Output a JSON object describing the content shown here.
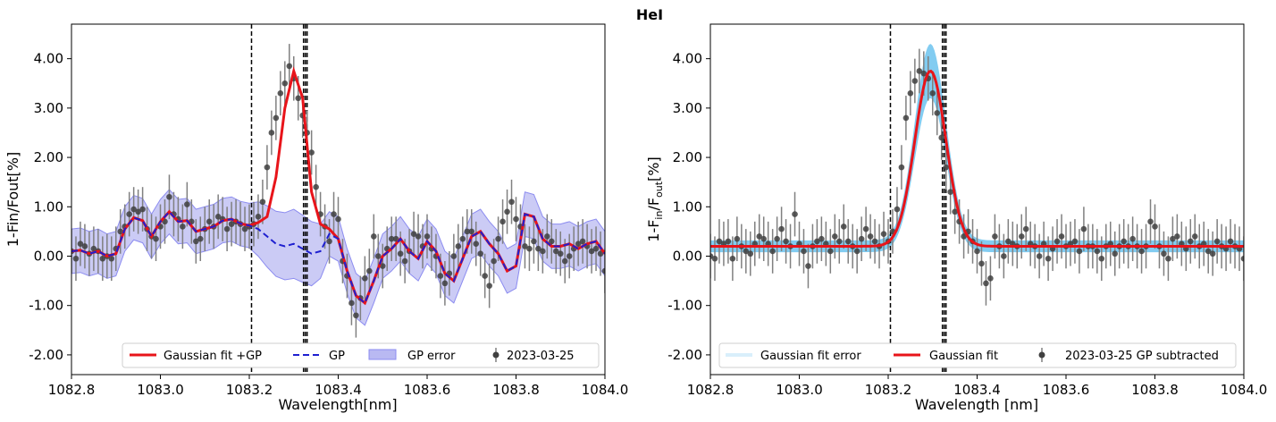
{
  "suptitle": "HeI",
  "colors": {
    "fit": "#e8141a",
    "gp": "#1f20d0",
    "gp_band": "#b9b9f2",
    "gp_band_edge": "#8c8cf0",
    "point": "#404040",
    "errbar": "#808080",
    "right_band": "#74c7ef",
    "right_legend_band": "#d9effb",
    "vline": "#000000"
  },
  "vlines": [
    1083.205,
    1083.322,
    1083.326,
    1083.33
  ],
  "chart_data": [
    {
      "type": "scatter",
      "panel": "left",
      "xlabel": "Wavelength[nm]",
      "ylabel": "1-Fin/Fout[%]",
      "xlim": [
        1082.8,
        1084.0
      ],
      "ylim": [
        -2.4,
        4.7
      ],
      "xticks": [
        1082.8,
        1083.0,
        1083.2,
        1083.4,
        1083.6,
        1083.8,
        1084.0
      ],
      "xtick_labels": [
        "1082.8",
        "1083.0",
        "1083.2",
        "1083.4",
        "1083.6",
        "1083.8",
        "1084.0"
      ],
      "yticks": [
        -2,
        -1,
        0,
        1,
        2,
        3,
        4
      ],
      "ytick_labels": [
        "-2.00",
        "-1.00",
        "0.00",
        "1.00",
        "2.00",
        "3.00",
        "4.00"
      ],
      "legend": {
        "position": "lower-right",
        "entries": [
          "Gaussian fit +GP",
          "GP",
          "GP error",
          "2023-03-25"
        ]
      },
      "series": [
        {
          "name": "2023-03-25",
          "kind": "errorbar",
          "error": 0.45,
          "x": [
            1082.8,
            1082.81,
            1082.82,
            1082.83,
            1082.84,
            1082.85,
            1082.86,
            1082.87,
            1082.88,
            1082.89,
            1082.9,
            1082.91,
            1082.92,
            1082.93,
            1082.94,
            1082.95,
            1082.96,
            1082.97,
            1082.98,
            1082.99,
            1083.0,
            1083.01,
            1083.02,
            1083.03,
            1083.04,
            1083.05,
            1083.06,
            1083.07,
            1083.08,
            1083.09,
            1083.1,
            1083.11,
            1083.12,
            1083.13,
            1083.14,
            1083.15,
            1083.16,
            1083.17,
            1083.18,
            1083.19,
            1083.2,
            1083.21,
            1083.22,
            1083.23,
            1083.24,
            1083.25,
            1083.26,
            1083.27,
            1083.28,
            1083.29,
            1083.3,
            1083.31,
            1083.32,
            1083.33,
            1083.34,
            1083.35,
            1083.36,
            1083.37,
            1083.38,
            1083.39,
            1083.4,
            1083.41,
            1083.42,
            1083.43,
            1083.44,
            1083.45,
            1083.46,
            1083.47,
            1083.48,
            1083.49,
            1083.5,
            1083.51,
            1083.52,
            1083.53,
            1083.54,
            1083.55,
            1083.56,
            1083.57,
            1083.58,
            1083.59,
            1083.6,
            1083.61,
            1083.62,
            1083.63,
            1083.64,
            1083.65,
            1083.66,
            1083.67,
            1083.68,
            1083.69,
            1083.7,
            1083.71,
            1083.72,
            1083.73,
            1083.74,
            1083.75,
            1083.76,
            1083.77,
            1083.78,
            1083.79,
            1083.8,
            1083.81,
            1083.82,
            1083.83,
            1083.84,
            1083.85,
            1083.86,
            1083.87,
            1083.88,
            1083.89,
            1083.9,
            1083.91,
            1083.92,
            1083.93,
            1083.94,
            1083.95,
            1083.96,
            1083.97,
            1083.98,
            1083.99,
            1084.0
          ],
          "y": [
            0.1,
            -0.05,
            0.25,
            0.2,
            0.05,
            0.15,
            0.1,
            -0.05,
            0.0,
            -0.05,
            0.15,
            0.5,
            0.6,
            0.85,
            0.95,
            0.9,
            0.95,
            0.55,
            0.4,
            0.35,
            0.6,
            0.7,
            1.2,
            0.85,
            0.75,
            0.6,
            1.05,
            0.7,
            0.3,
            0.35,
            0.55,
            0.7,
            0.6,
            0.8,
            0.75,
            0.55,
            0.65,
            0.7,
            0.65,
            0.55,
            0.6,
            0.65,
            0.8,
            1.1,
            1.8,
            2.5,
            2.8,
            3.3,
            3.5,
            3.85,
            3.6,
            3.2,
            2.85,
            2.5,
            2.1,
            1.4,
            0.85,
            0.6,
            0.3,
            0.85,
            0.75,
            -0.1,
            -0.4,
            -0.95,
            -1.2,
            -0.85,
            -0.45,
            -0.3,
            0.4,
            0.0,
            -0.2,
            0.15,
            0.35,
            0.35,
            0.05,
            -0.1,
            0.1,
            0.45,
            0.4,
            0.2,
            0.4,
            0.15,
            0.0,
            -0.4,
            -0.55,
            -0.35,
            0.0,
            0.2,
            0.35,
            0.5,
            0.5,
            0.25,
            0.05,
            -0.4,
            -0.6,
            -0.1,
            0.35,
            0.7,
            0.9,
            1.1,
            0.75,
            0.6,
            0.2,
            0.15,
            0.3,
            0.15,
            0.1,
            0.4,
            0.3,
            0.1,
            0.05,
            -0.1,
            0.0,
            0.15,
            0.25,
            0.3,
            0.2,
            0.1,
            0.15,
            0.05,
            -0.3
          ]
        },
        {
          "name": "Gaussian fit +GP",
          "kind": "line",
          "x": [
            1082.8,
            1082.82,
            1082.84,
            1082.86,
            1082.88,
            1082.9,
            1082.92,
            1082.94,
            1082.96,
            1082.98,
            1083.0,
            1083.02,
            1083.04,
            1083.06,
            1083.08,
            1083.1,
            1083.12,
            1083.14,
            1083.16,
            1083.18,
            1083.2,
            1083.22,
            1083.24,
            1083.26,
            1083.28,
            1083.3,
            1083.32,
            1083.34,
            1083.36,
            1083.38,
            1083.4,
            1083.42,
            1083.44,
            1083.46,
            1083.48,
            1083.5,
            1083.52,
            1083.54,
            1083.56,
            1083.58,
            1083.6,
            1083.62,
            1083.64,
            1083.66,
            1083.68,
            1083.7,
            1083.72,
            1083.74,
            1083.76,
            1083.78,
            1083.8,
            1083.82,
            1083.84,
            1083.86,
            1083.88,
            1083.9,
            1083.92,
            1083.94,
            1083.96,
            1083.98,
            1084.0
          ],
          "y": [
            0.1,
            0.12,
            0.05,
            0.1,
            0.0,
            0.05,
            0.55,
            0.78,
            0.72,
            0.4,
            0.7,
            0.9,
            0.7,
            0.72,
            0.5,
            0.55,
            0.6,
            0.72,
            0.75,
            0.66,
            0.62,
            0.68,
            0.8,
            1.6,
            3.0,
            3.75,
            3.2,
            1.3,
            0.65,
            0.55,
            0.35,
            -0.3,
            -0.8,
            -0.95,
            -0.5,
            0.0,
            0.15,
            0.35,
            0.1,
            -0.05,
            0.3,
            0.1,
            -0.35,
            -0.5,
            -0.05,
            0.4,
            0.5,
            0.25,
            0.05,
            -0.3,
            -0.2,
            0.85,
            0.8,
            0.35,
            0.2,
            0.2,
            0.25,
            0.15,
            0.25,
            0.3,
            0.05
          ]
        },
        {
          "name": "GP",
          "kind": "dashed",
          "x": [
            1082.8,
            1082.82,
            1082.84,
            1082.86,
            1082.88,
            1082.9,
            1082.92,
            1082.94,
            1082.96,
            1082.98,
            1083.0,
            1083.02,
            1083.04,
            1083.06,
            1083.08,
            1083.1,
            1083.12,
            1083.14,
            1083.16,
            1083.18,
            1083.2,
            1083.22,
            1083.24,
            1083.26,
            1083.28,
            1083.3,
            1083.32,
            1083.34,
            1083.36,
            1083.38,
            1083.4,
            1083.42,
            1083.44,
            1083.46,
            1083.48,
            1083.5,
            1083.52,
            1083.54,
            1083.56,
            1083.58,
            1083.6,
            1083.62,
            1083.64,
            1083.66,
            1083.68,
            1083.7,
            1083.72,
            1083.74,
            1083.76,
            1083.78,
            1083.8,
            1083.82,
            1083.84,
            1083.86,
            1083.88,
            1083.9,
            1083.92,
            1083.94,
            1083.96,
            1083.98,
            1084.0
          ],
          "y": [
            0.1,
            0.12,
            0.05,
            0.1,
            0.0,
            0.05,
            0.55,
            0.78,
            0.72,
            0.4,
            0.7,
            0.9,
            0.7,
            0.72,
            0.5,
            0.55,
            0.6,
            0.72,
            0.75,
            0.66,
            0.62,
            0.55,
            0.4,
            0.25,
            0.2,
            0.25,
            0.15,
            0.05,
            0.1,
            0.45,
            0.35,
            -0.3,
            -0.8,
            -0.95,
            -0.5,
            0.0,
            0.15,
            0.35,
            0.1,
            -0.05,
            0.3,
            0.1,
            -0.35,
            -0.5,
            -0.05,
            0.4,
            0.5,
            0.25,
            0.05,
            -0.3,
            -0.2,
            0.85,
            0.8,
            0.35,
            0.2,
            0.2,
            0.25,
            0.15,
            0.25,
            0.3,
            0.05
          ]
        },
        {
          "name": "GP error",
          "kind": "band",
          "halfwidth": [
            0.45,
            0.45,
            0.45,
            0.45,
            0.45,
            0.45,
            0.45,
            0.45,
            0.45,
            0.45,
            0.45,
            0.45,
            0.45,
            0.45,
            0.45,
            0.45,
            0.45,
            0.45,
            0.45,
            0.45,
            0.45,
            0.55,
            0.62,
            0.66,
            0.68,
            0.7,
            0.68,
            0.65,
            0.55,
            0.45,
            0.45,
            0.45,
            0.45,
            0.45,
            0.45,
            0.45,
            0.45,
            0.45,
            0.45,
            0.45,
            0.45,
            0.45,
            0.45,
            0.45,
            0.45,
            0.45,
            0.45,
            0.45,
            0.45,
            0.45,
            0.45,
            0.45,
            0.45,
            0.45,
            0.45,
            0.45,
            0.45,
            0.45,
            0.45,
            0.45,
            0.45
          ]
        }
      ]
    },
    {
      "type": "scatter",
      "panel": "right",
      "xlabel": "Wavelength [nm]",
      "ylabel": "1-F_in/F_out[%]",
      "ylabel_parts": {
        "a": "1-F",
        "b": "in",
        "c": "/F",
        "d": "out",
        "e": "[%]"
      },
      "xlim": [
        1082.8,
        1084.0
      ],
      "ylim": [
        -2.4,
        4.7
      ],
      "xticks": [
        1082.8,
        1083.0,
        1083.2,
        1083.4,
        1083.6,
        1083.8,
        1084.0
      ],
      "xtick_labels": [
        "1082.8",
        "1083.0",
        "1083.2",
        "1083.4",
        "1083.6",
        "1083.8",
        "1084.0"
      ],
      "yticks": [
        -2,
        -1,
        0,
        1,
        2,
        3,
        4
      ],
      "ytick_labels": [
        "-2.00",
        "-1.00",
        "0.00",
        "1.00",
        "2.00",
        "3.00",
        "4.00"
      ],
      "legend": {
        "position": "lower-center",
        "entries": [
          "Gaussian fit error",
          "Gaussian fit",
          "2023-03-25 GP subtracted"
        ]
      },
      "gaussian": {
        "baseline": 0.2,
        "amplitude": 3.55,
        "center": 1083.295,
        "sigma": 0.035,
        "band_halfwidth": 0.12,
        "band_peak_halfwidth": 0.55
      },
      "series": [
        {
          "name": "2023-03-25 GP subtracted",
          "kind": "errorbar",
          "error": 0.45,
          "x": [
            1082.8,
            1082.81,
            1082.82,
            1082.83,
            1082.84,
            1082.85,
            1082.86,
            1082.87,
            1082.88,
            1082.89,
            1082.9,
            1082.91,
            1082.92,
            1082.93,
            1082.94,
            1082.95,
            1082.96,
            1082.97,
            1082.98,
            1082.99,
            1083.0,
            1083.01,
            1083.02,
            1083.03,
            1083.04,
            1083.05,
            1083.06,
            1083.07,
            1083.08,
            1083.09,
            1083.1,
            1083.11,
            1083.12,
            1083.13,
            1083.14,
            1083.15,
            1083.16,
            1083.17,
            1083.18,
            1083.19,
            1083.2,
            1083.21,
            1083.22,
            1083.23,
            1083.24,
            1083.25,
            1083.26,
            1083.27,
            1083.28,
            1083.29,
            1083.3,
            1083.31,
            1083.32,
            1083.33,
            1083.34,
            1083.35,
            1083.36,
            1083.37,
            1083.38,
            1083.39,
            1083.4,
            1083.41,
            1083.42,
            1083.43,
            1083.44,
            1083.45,
            1083.46,
            1083.47,
            1083.48,
            1083.49,
            1083.5,
            1083.51,
            1083.52,
            1083.53,
            1083.54,
            1083.55,
            1083.56,
            1083.57,
            1083.58,
            1083.59,
            1083.6,
            1083.61,
            1083.62,
            1083.63,
            1083.64,
            1083.65,
            1083.66,
            1083.67,
            1083.68,
            1083.69,
            1083.7,
            1083.71,
            1083.72,
            1083.73,
            1083.74,
            1083.75,
            1083.76,
            1083.77,
            1083.78,
            1083.79,
            1083.8,
            1083.81,
            1083.82,
            1083.83,
            1083.84,
            1083.85,
            1083.86,
            1083.87,
            1083.88,
            1083.89,
            1083.9,
            1083.91,
            1083.92,
            1083.93,
            1083.94,
            1083.95,
            1083.96,
            1083.97,
            1083.98,
            1083.99,
            1084.0
          ],
          "y": [
            0.0,
            -0.05,
            0.3,
            0.25,
            0.3,
            -0.05,
            0.35,
            0.2,
            0.1,
            0.05,
            0.25,
            0.4,
            0.35,
            0.25,
            0.1,
            0.35,
            0.55,
            0.3,
            0.2,
            0.85,
            0.25,
            0.1,
            -0.2,
            0.2,
            0.3,
            0.35,
            0.25,
            0.1,
            0.4,
            0.3,
            0.6,
            0.3,
            0.2,
            0.1,
            0.35,
            0.55,
            0.4,
            0.3,
            0.2,
            0.45,
            0.3,
            0.5,
            0.95,
            1.8,
            2.8,
            3.3,
            3.55,
            3.75,
            3.7,
            3.6,
            3.3,
            2.9,
            2.4,
            1.8,
            1.3,
            0.9,
            0.7,
            0.4,
            0.5,
            0.3,
            0.1,
            -0.15,
            -0.55,
            -0.45,
            0.4,
            0.2,
            0.0,
            0.3,
            0.25,
            0.2,
            0.4,
            0.55,
            0.25,
            0.2,
            0.0,
            0.25,
            -0.05,
            0.15,
            0.3,
            0.4,
            0.2,
            0.25,
            0.3,
            0.1,
            0.55,
            0.2,
            0.2,
            0.1,
            -0.05,
            0.2,
            0.25,
            0.05,
            0.2,
            0.3,
            0.2,
            0.35,
            0.2,
            0.1,
            0.2,
            0.7,
            0.6,
            0.2,
            0.05,
            -0.05,
            0.35,
            0.4,
            0.25,
            0.15,
            0.3,
            0.4,
            0.2,
            0.25,
            0.1,
            0.05,
            0.3,
            0.2,
            0.15,
            0.3,
            0.2,
            0.15,
            -0.05
          ]
        },
        {
          "name": "Gaussian fit",
          "kind": "line"
        },
        {
          "name": "Gaussian fit error",
          "kind": "band"
        }
      ]
    }
  ]
}
